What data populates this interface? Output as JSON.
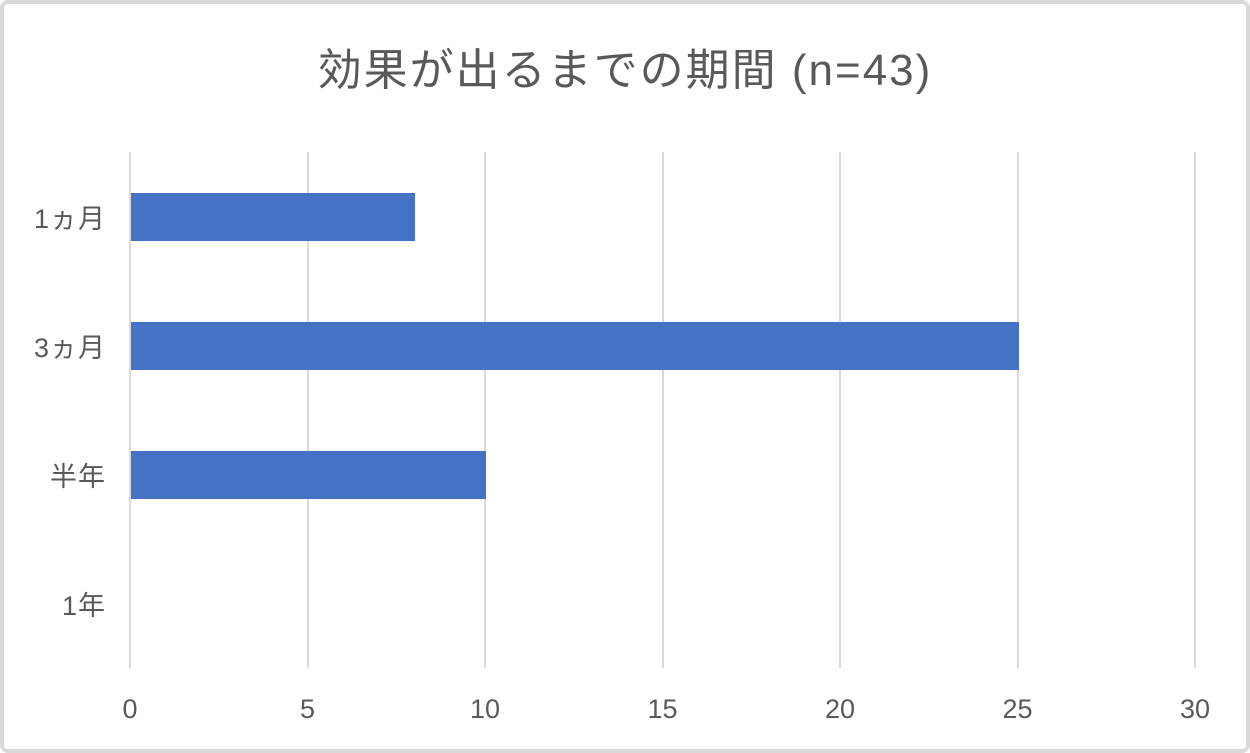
{
  "chart_data": {
    "type": "bar",
    "orientation": "horizontal",
    "title": "効果が出るまでの期間 (n=43)",
    "categories": [
      "1ヵ月",
      "3ヵ月",
      "半年",
      "1年"
    ],
    "values": [
      8,
      25,
      10,
      0
    ],
    "x_ticks": [
      0,
      5,
      10,
      15,
      20,
      25,
      30
    ],
    "xlim": [
      0,
      30
    ],
    "xlabel": "",
    "ylabel": "",
    "grid": true,
    "legend": false,
    "colors": {
      "bar": "#4472c4",
      "gridline": "#d9d9d9",
      "text": "#595959",
      "frame_border": "#d9d9d9",
      "background": "#ffffff"
    }
  }
}
